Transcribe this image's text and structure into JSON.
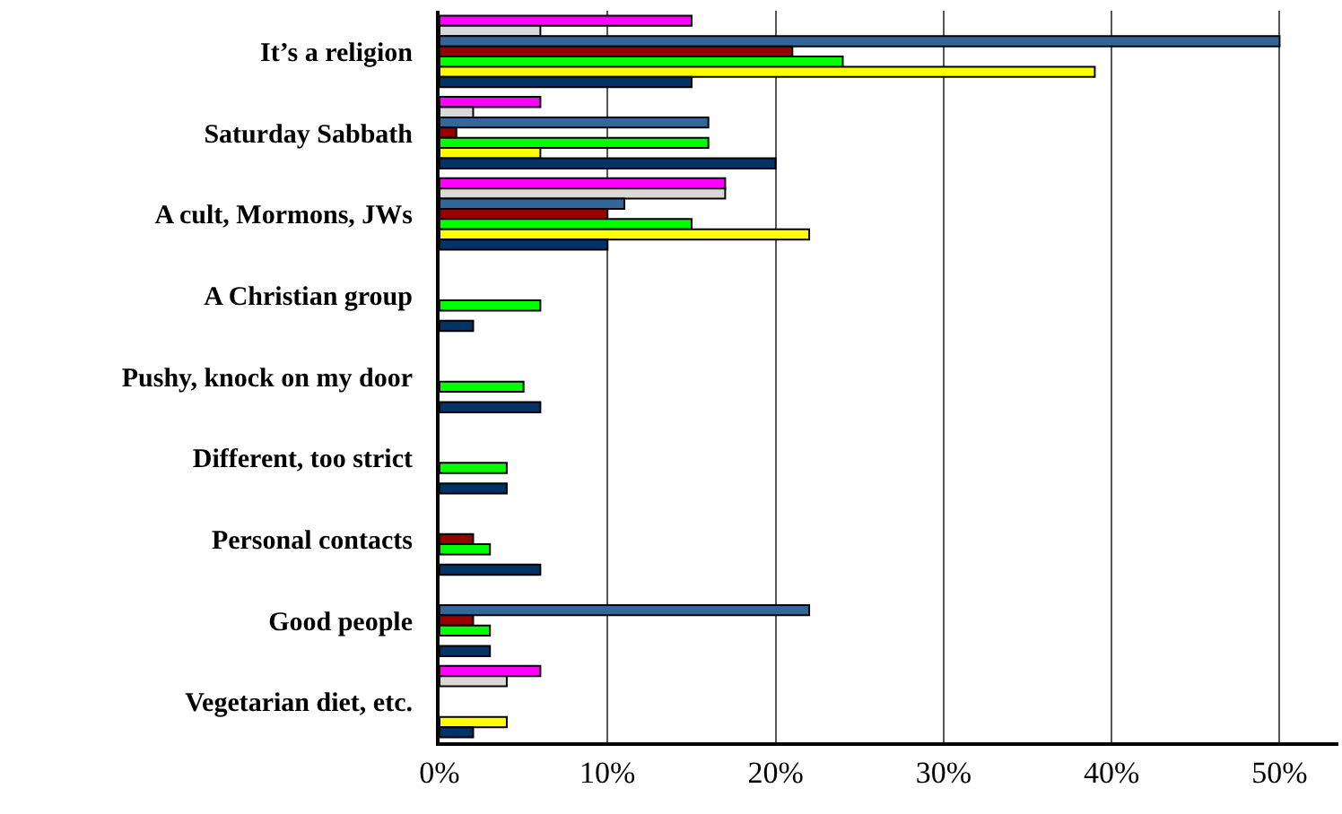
{
  "chart_data": {
    "type": "bar",
    "orientation": "horizontal",
    "categories": [
      "It’s a religion",
      "Saturday Sabbath",
      "A cult, Mormons, JWs",
      "A Christian group",
      "Pushy, knock on my door",
      "Different, too strict",
      "Personal contacts",
      "Good people",
      "Vegetarian diet, etc."
    ],
    "series": [
      {
        "color": "#ff00ff",
        "values": [
          15,
          6,
          17,
          null,
          null,
          null,
          null,
          null,
          6
        ]
      },
      {
        "color": "#d9d9d9",
        "values": [
          6,
          2,
          17,
          null,
          null,
          null,
          null,
          null,
          4
        ]
      },
      {
        "color": "#336699",
        "values": [
          50,
          16,
          11,
          null,
          null,
          null,
          null,
          22,
          null
        ]
      },
      {
        "color": "#990000",
        "values": [
          21,
          1,
          10,
          null,
          null,
          null,
          2,
          2,
          null
        ]
      },
      {
        "color": "#00ff00",
        "values": [
          24,
          16,
          15,
          6,
          5,
          4,
          3,
          3,
          null
        ]
      },
      {
        "color": "#ffff00",
        "values": [
          39,
          6,
          22,
          null,
          null,
          null,
          null,
          null,
          4
        ]
      },
      {
        "color": "#003366",
        "values": [
          15,
          20,
          10,
          2,
          6,
          4,
          6,
          3,
          2
        ]
      }
    ],
    "xlim": [
      0,
      53.5
    ],
    "xticks": [
      {
        "value": 0,
        "label": "0%"
      },
      {
        "value": 10,
        "label": "10%"
      },
      {
        "value": 20,
        "label": "20%"
      },
      {
        "value": 30,
        "label": "30%"
      },
      {
        "value": 40,
        "label": "40%"
      },
      {
        "value": 50,
        "label": "50%"
      }
    ],
    "grid": "x",
    "legend": false
  }
}
